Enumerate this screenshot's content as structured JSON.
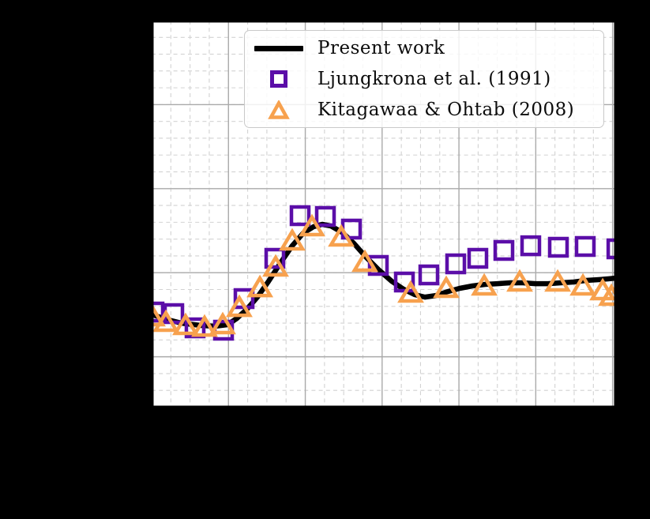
{
  "figure": {
    "background_color": "#000000",
    "plot_background_color": "#ffffff",
    "note": "axis tick labels and axis titles are not visible (rendered black on black)"
  },
  "legend": {
    "entries": [
      {
        "label": "Present work",
        "type": "line",
        "color": "#000000"
      },
      {
        "label": "Ljungkrona et al. (1991)",
        "type": "square",
        "color": "#5B0EA8"
      },
      {
        "label": "Kitagawaa & Ohtab (2008)",
        "type": "triangle",
        "color": "#F7A14E"
      }
    ]
  },
  "chart_data": {
    "type": "line",
    "title": "",
    "xlabel": "",
    "ylabel": "",
    "tick_labels_visible": false,
    "axes_note": "values are in grid units estimated from gridlines; major gridline spacing = 1 unit, x minors every 0.25, y minors every 0.2; tick labels are not visible in the image",
    "x_range": [
      0,
      6.045
    ],
    "y_range": [
      -0.605,
      4.0
    ],
    "x_major_step": 1,
    "x_minor_step": 0.25,
    "y_major_step": 1,
    "y_minor_step": 0.2,
    "grid": {
      "major_color": "#aaaaaa",
      "minor_color": "#d2d2d2",
      "minor_dashed": true
    },
    "legend_loc": "upper center",
    "series": [
      {
        "name": "Present work",
        "type": "line",
        "color": "#000000",
        "line_width": 6.5,
        "points": [
          [
            0.0,
            0.504
          ],
          [
            0.185,
            0.447
          ],
          [
            0.391,
            0.4
          ],
          [
            0.648,
            0.372
          ],
          [
            0.822,
            0.363
          ],
          [
            0.987,
            0.382
          ],
          [
            1.11,
            0.457
          ],
          [
            1.244,
            0.57
          ],
          [
            1.378,
            0.711
          ],
          [
            1.522,
            0.898
          ],
          [
            1.676,
            1.115
          ],
          [
            1.83,
            1.321
          ],
          [
            1.974,
            1.472
          ],
          [
            2.108,
            1.547
          ],
          [
            2.221,
            1.575
          ],
          [
            2.334,
            1.556
          ],
          [
            2.478,
            1.481
          ],
          [
            2.632,
            1.35
          ],
          [
            2.796,
            1.18
          ],
          [
            2.961,
            1.03
          ],
          [
            3.125,
            0.898
          ],
          [
            3.28,
            0.804
          ],
          [
            3.424,
            0.739
          ],
          [
            3.557,
            0.71
          ],
          [
            3.701,
            0.729
          ],
          [
            3.855,
            0.776
          ],
          [
            4.01,
            0.814
          ],
          [
            4.174,
            0.842
          ],
          [
            4.339,
            0.861
          ],
          [
            4.503,
            0.87
          ],
          [
            4.668,
            0.88
          ],
          [
            4.832,
            0.88
          ],
          [
            4.997,
            0.87
          ],
          [
            5.161,
            0.87
          ],
          [
            5.326,
            0.88
          ],
          [
            5.49,
            0.889
          ],
          [
            5.654,
            0.908
          ],
          [
            5.819,
            0.917
          ],
          [
            5.942,
            0.927
          ],
          [
            6.045,
            0.936
          ]
        ]
      },
      {
        "name": "Ljungkrona et al. (1991)",
        "type": "scatter",
        "marker": "square",
        "color": "#5B0EA8",
        "marker_size": 22,
        "marker_stroke": 4.5,
        "points": [
          [
            0.031,
            0.532
          ],
          [
            0.288,
            0.513
          ],
          [
            0.565,
            0.344
          ],
          [
            0.936,
            0.316
          ],
          [
            1.203,
            0.692
          ],
          [
            1.604,
            1.171
          ],
          [
            1.933,
            1.679
          ],
          [
            2.262,
            1.669
          ],
          [
            2.601,
            1.519
          ],
          [
            2.951,
            1.087
          ],
          [
            3.29,
            0.889
          ],
          [
            3.609,
            0.974
          ],
          [
            3.958,
            1.105
          ],
          [
            4.246,
            1.171
          ],
          [
            4.585,
            1.265
          ],
          [
            4.935,
            1.321
          ],
          [
            5.295,
            1.303
          ],
          [
            5.644,
            1.312
          ],
          [
            6.056,
            1.284
          ]
        ]
      },
      {
        "name": "Kitagawaa & Ohtab (2008)",
        "type": "scatter",
        "marker": "triangle",
        "color": "#F7A14E",
        "marker_size": 26,
        "marker_stroke": 4.5,
        "points": [
          [
            0.01,
            0.476
          ],
          [
            0.185,
            0.41
          ],
          [
            0.442,
            0.372
          ],
          [
            0.689,
            0.353
          ],
          [
            0.925,
            0.382
          ],
          [
            1.141,
            0.588
          ],
          [
            1.409,
            0.823
          ],
          [
            1.614,
            1.068
          ],
          [
            1.83,
            1.378
          ],
          [
            2.087,
            1.547
          ],
          [
            2.468,
            1.425
          ],
          [
            2.776,
            1.124
          ],
          [
            3.372,
            0.758
          ],
          [
            3.835,
            0.814
          ],
          [
            4.329,
            0.842
          ],
          [
            4.791,
            0.889
          ],
          [
            5.285,
            0.889
          ],
          [
            5.614,
            0.842
          ],
          [
            5.871,
            0.786
          ],
          [
            5.984,
            0.72
          ]
        ]
      }
    ]
  }
}
